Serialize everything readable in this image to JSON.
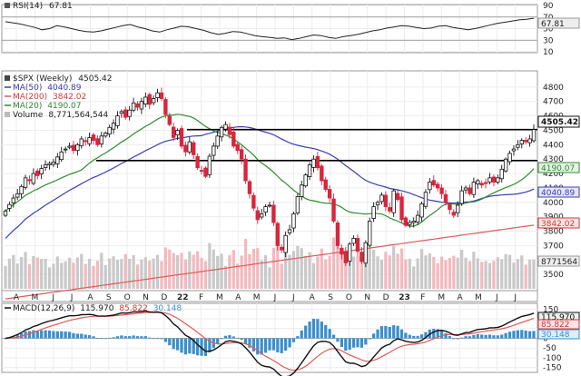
{
  "chart_data": {
    "type": "ohlc-multi-panel",
    "rsi": {
      "label": "RSI(14)",
      "value_text": "67.81",
      "value": 67.81,
      "ylim": [
        10,
        90
      ],
      "ticks": [
        "90",
        "70",
        "50",
        "30",
        "10"
      ],
      "tick_values": [
        90,
        70,
        50,
        30,
        10
      ],
      "ref_lines": [
        70,
        30
      ],
      "series": [
        62,
        60,
        58,
        55,
        52,
        48,
        50,
        55,
        53,
        50,
        47,
        45,
        44,
        46,
        49,
        52,
        55,
        57,
        53,
        50,
        46,
        44,
        48,
        51,
        54,
        53,
        50,
        47,
        43,
        40,
        42,
        45,
        44,
        41,
        38,
        36,
        35,
        33,
        34,
        31,
        33,
        36,
        39,
        38,
        35,
        33,
        36,
        38,
        40,
        43,
        46,
        48,
        51,
        53,
        55,
        54,
        52,
        50,
        51,
        54,
        55,
        52,
        50,
        48,
        50,
        53,
        56,
        59,
        61,
        63,
        65,
        66,
        67.81
      ]
    },
    "main": {
      "symbol_label": "$SPX (Weekly)",
      "last_text": "4505.42",
      "last": 4505.42,
      "ma50_label": "MA(50)",
      "ma50_text": "4040.89",
      "ma200_label": "MA(200)",
      "ma200_text": "3842.02",
      "ma20_label": "MA(20)",
      "ma20_text": "4190.07",
      "volume_label": "Volume",
      "volume_text": "8,771,564,544",
      "volume_tag": "8771564",
      "ylim": [
        3400,
        4900
      ],
      "ticks": [
        "4800",
        "4700",
        "4600",
        "4500",
        "4400",
        "4300",
        "4200",
        "4100",
        "4000",
        "3900",
        "3800",
        "3700",
        "3600",
        "3500"
      ],
      "tick_values": [
        4800,
        4700,
        4600,
        4500,
        4400,
        4300,
        4200,
        4100,
        4000,
        3900,
        3800,
        3700,
        3600,
        3500
      ],
      "resistance": [
        4505,
        4290
      ],
      "x_labels": [
        "A",
        "M",
        "J",
        "J",
        "A",
        "S",
        "O",
        "N",
        "D",
        "22",
        "F",
        "M",
        "A",
        "M",
        "J",
        "J",
        "A",
        "S",
        "O",
        "N",
        "D",
        "23",
        "F",
        "M",
        "A",
        "M",
        "J",
        "J"
      ],
      "closes": [
        3940,
        3985,
        4030,
        4060,
        4110,
        4170,
        4150,
        4200,
        4185,
        4235,
        4260,
        4270,
        4280,
        4315,
        4350,
        4370,
        4390,
        4360,
        4400,
        4440,
        4425,
        4450,
        4430,
        4400,
        4460,
        4480,
        4520,
        4550,
        4600,
        4630,
        4590,
        4640,
        4690,
        4660,
        4700,
        4730,
        4680,
        4720,
        4760,
        4720,
        4610,
        4540,
        4450,
        4500,
        4390,
        4350,
        4420,
        4330,
        4240,
        4220,
        4180,
        4320,
        4390,
        4460,
        4520,
        4540,
        4470,
        4390,
        4360,
        4300,
        4150,
        4060,
        3960,
        3880,
        3920,
        3970,
        3980,
        3860,
        3700,
        3670,
        3770,
        3810,
        3920,
        4040,
        4120,
        4190,
        4260,
        4300,
        4240,
        4150,
        4090,
        4030,
        3870,
        3700,
        3640,
        3580,
        3710,
        3750,
        3660,
        3590,
        3720,
        3870,
        3970,
        4000,
        4050,
        3970,
        3940,
        4080,
        4020,
        3880,
        3840,
        3860,
        3870,
        3910,
        3990,
        4070,
        4140,
        4120,
        4100,
        4060,
        4000,
        3950,
        3910,
        3980,
        4080,
        4100,
        4060,
        4140,
        4150,
        4120,
        4130,
        4170,
        4140,
        4170,
        4230,
        4300,
        4340,
        4370,
        4400,
        4430,
        4420,
        4440,
        4505
      ]
    },
    "macd": {
      "label": "MACD(12,26,9)",
      "macd_text": "115.970",
      "signal_text": "85.822",
      "hist_text": "30.148",
      "ylim": [
        -170,
        170
      ],
      "ticks": [
        "150",
        "100",
        "50",
        "0",
        "-50",
        "-100",
        "-150"
      ],
      "tick_values": [
        150,
        100,
        50,
        0,
        -50,
        -100,
        -150
      ]
    },
    "colors": {
      "up": "#111111",
      "down": "#d7263d",
      "ma50": "#3b3fb0",
      "ma200": "#e05a5a",
      "ma20": "#2e8b2e",
      "hist": "#3a8fc9",
      "signal": "#e05a5a",
      "macd": "#111111",
      "tag_ma20_bg": "#e4f3e4",
      "tag_ma50_bg": "#e4e6f7",
      "tag_ma200_bg": "#fbe4e4"
    }
  }
}
